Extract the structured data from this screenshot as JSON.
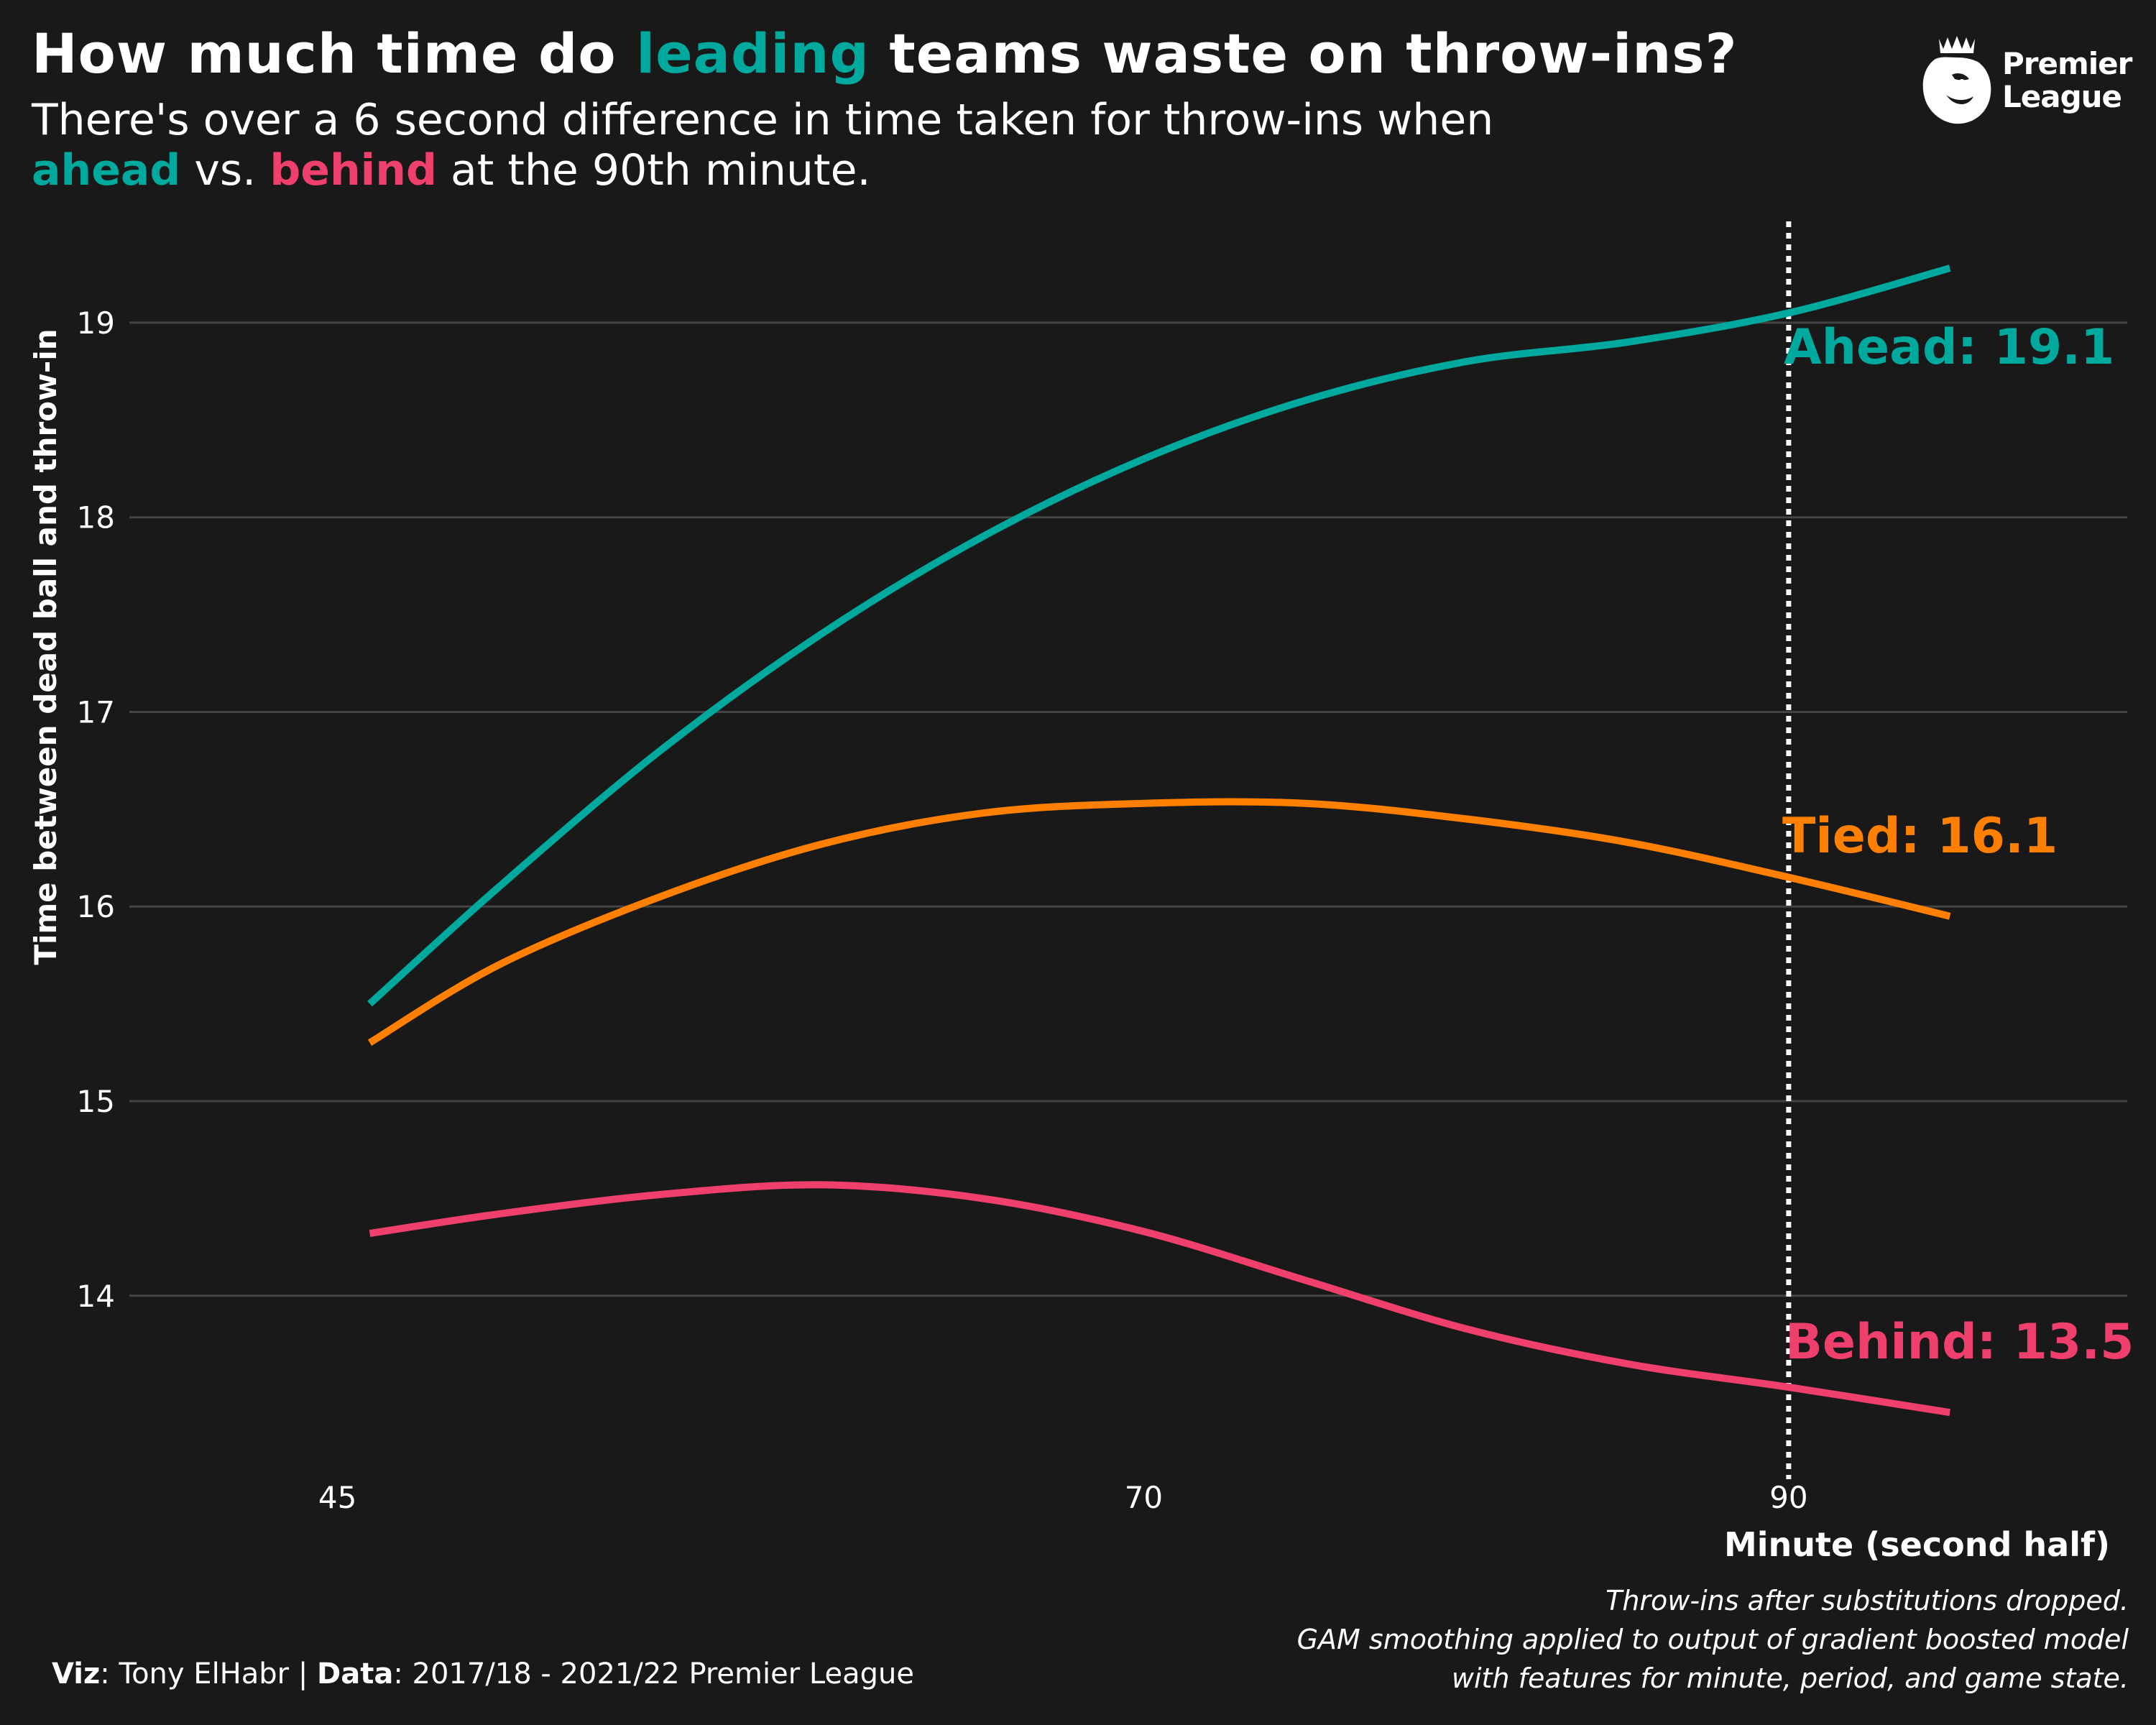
{
  "title": {
    "before": "How much time do ",
    "highlight": "leading",
    "after": " teams waste on throw-ins?"
  },
  "subtitle": {
    "line1": "There's over a 6 second difference in time taken for throw-ins when",
    "ahead": "ahead",
    "vs": " vs. ",
    "behind": "behind",
    "end": " at the 90th minute."
  },
  "logo": {
    "line1": "Premier",
    "line2": "League",
    "icon": "lion-crest-icon"
  },
  "notes": {
    "line1": "Throw-ins after substitutions dropped.",
    "line2": "GAM smoothing applied to output of gradient boosted model",
    "line3": "with features for minute, period, and game state."
  },
  "credit": {
    "viz_label": "Viz",
    "viz_value": ": Tony ElHabr | ",
    "data_label": "Data",
    "data_value": ": 2017/18 - 2021/22 Premier League"
  },
  "colors": {
    "ahead": "#00a99d",
    "tied": "#ff8000",
    "behind": "#ef3f6d",
    "background": "#191919",
    "grid": "#444444"
  },
  "chart_data": {
    "type": "line",
    "title": "How much time do leading teams waste on throw-ins?",
    "xlabel": "Minute (second half)",
    "ylabel": "Time between dead ball and throw-in",
    "xlim": [
      38.5,
      100.5
    ],
    "ylim": [
      13.05,
      19.55
    ],
    "xticks": [
      45,
      70,
      90
    ],
    "yticks": [
      14,
      15,
      16,
      17,
      18,
      19
    ],
    "grid": "horizontal",
    "reference_line": {
      "x": 90,
      "style": "dotted"
    },
    "series": [
      {
        "name": "Ahead",
        "color": "#00a99d",
        "end_label": "Ahead: 19.1",
        "x": [
          46,
          50,
          55,
          60,
          65,
          70,
          75,
          80,
          85,
          90,
          95
        ],
        "y": [
          15.5,
          16.1,
          16.8,
          17.4,
          17.9,
          18.3,
          18.6,
          18.8,
          18.9,
          19.05,
          19.28
        ]
      },
      {
        "name": "Tied",
        "color": "#ff8000",
        "end_label": "Tied: 16.1",
        "x": [
          46,
          50,
          55,
          60,
          65,
          70,
          75,
          80,
          85,
          90,
          95
        ],
        "y": [
          15.3,
          15.7,
          16.05,
          16.32,
          16.48,
          16.53,
          16.53,
          16.45,
          16.33,
          16.15,
          15.95
        ]
      },
      {
        "name": "Behind",
        "color": "#ef3f6d",
        "end_label": "Behind: 13.5",
        "x": [
          46,
          50,
          55,
          60,
          65,
          70,
          75,
          80,
          85,
          90,
          95
        ],
        "y": [
          14.32,
          14.42,
          14.52,
          14.57,
          14.5,
          14.33,
          14.08,
          13.83,
          13.65,
          13.53,
          13.4
        ]
      }
    ]
  }
}
